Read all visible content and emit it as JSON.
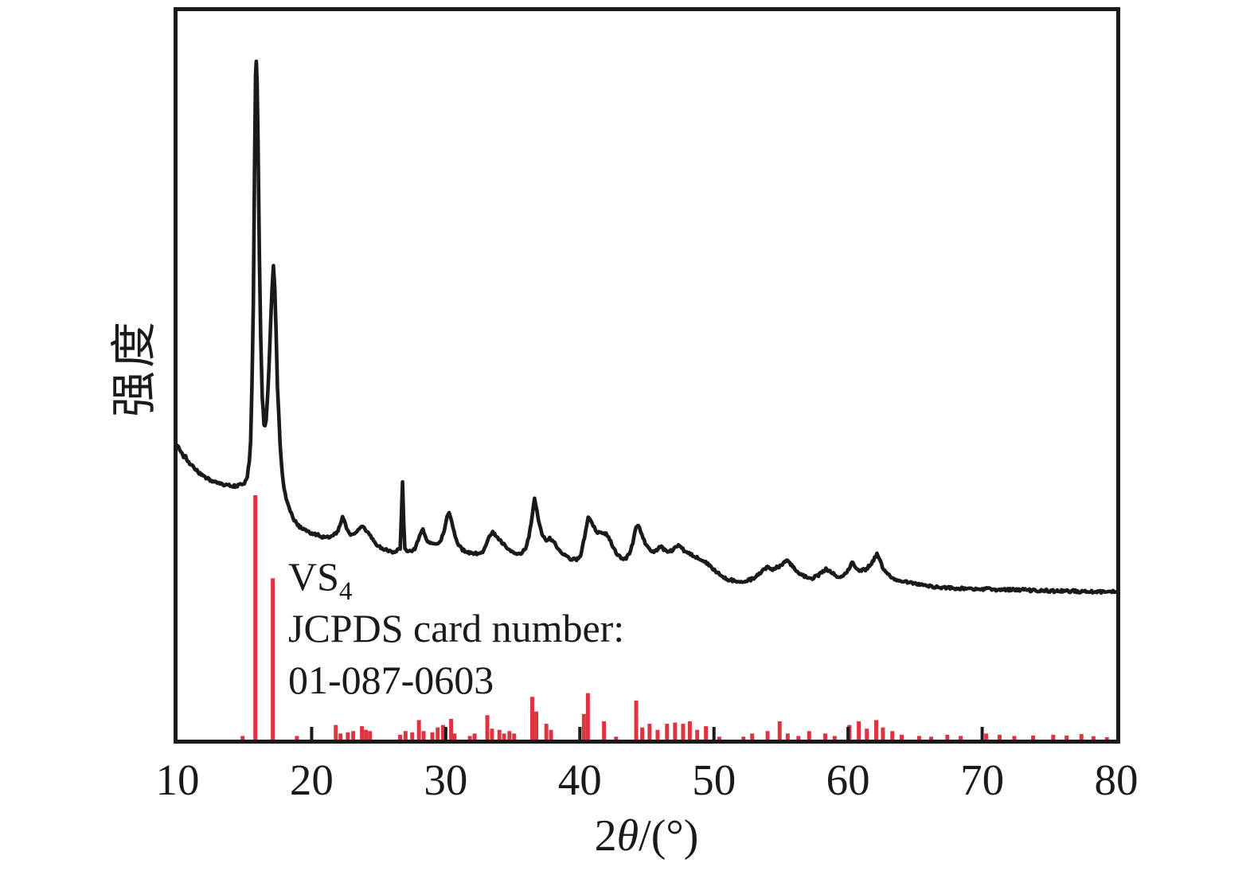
{
  "chart_data": {
    "type": "line",
    "description": "XRD pattern (experimental curve) with VS4 JCPDS reference stick pattern",
    "xlabel_parts": {
      "prefix": "2",
      "theta": "θ",
      "suffix": "/(°)"
    },
    "ylabel": "强度",
    "xlim": [
      10,
      80
    ],
    "x_ticks": [
      10,
      20,
      30,
      40,
      50,
      60,
      70,
      80
    ],
    "grid": false,
    "legend_position": "none",
    "colors": {
      "pattern": "#1a1a1a",
      "reference": "#dc3540",
      "axis": "#1a1a1a"
    },
    "annotation": {
      "formula_main": "VS",
      "formula_sub": "4",
      "line2": "JCPDS card number:",
      "line3": "01-087-0603"
    },
    "series": [
      {
        "name": "experimental-xrd-pattern",
        "draw": "line",
        "color": "#1a1a1a",
        "points": [
          [
            10.0,
            43.4
          ],
          [
            10.25,
            42.5
          ],
          [
            10.45,
            41.6
          ],
          [
            10.6,
            41.9
          ],
          [
            10.75,
            41.0
          ],
          [
            11.0,
            40.6
          ],
          [
            11.3,
            39.9
          ],
          [
            11.6,
            39.3
          ],
          [
            11.9,
            38.8
          ],
          [
            12.2,
            38.5
          ],
          [
            12.5,
            38.2
          ],
          [
            12.8,
            37.9
          ],
          [
            13.1,
            37.8
          ],
          [
            13.4,
            37.6
          ],
          [
            13.7,
            37.5
          ],
          [
            14.0,
            37.4
          ],
          [
            14.3,
            37.4
          ],
          [
            14.6,
            37.5
          ],
          [
            14.85,
            37.6
          ],
          [
            15.05,
            38.0
          ],
          [
            15.2,
            38.9
          ],
          [
            15.35,
            41.0
          ],
          [
            15.45,
            44.0
          ],
          [
            15.55,
            52.5
          ],
          [
            15.65,
            64.3
          ],
          [
            15.75,
            85.5
          ],
          [
            15.82,
            98.0
          ],
          [
            15.87,
            100.0
          ],
          [
            15.93,
            97.0
          ],
          [
            16.0,
            88.0
          ],
          [
            16.1,
            72.0
          ],
          [
            16.2,
            59.6
          ],
          [
            16.32,
            50.5
          ],
          [
            16.45,
            46.6
          ],
          [
            16.52,
            46.3
          ],
          [
            16.6,
            47.2
          ],
          [
            16.7,
            50.0
          ],
          [
            16.82,
            55.0
          ],
          [
            16.95,
            61.9
          ],
          [
            17.05,
            66.5
          ],
          [
            17.15,
            69.8
          ],
          [
            17.25,
            66.6
          ],
          [
            17.35,
            60.0
          ],
          [
            17.45,
            52.0
          ],
          [
            17.55,
            47.8
          ],
          [
            17.65,
            43.5
          ],
          [
            17.8,
            39.5
          ],
          [
            17.95,
            37.1
          ],
          [
            18.1,
            35.5
          ],
          [
            18.3,
            34.2
          ],
          [
            18.5,
            33.3
          ],
          [
            18.7,
            32.4
          ],
          [
            18.9,
            31.8
          ],
          [
            19.1,
            31.4
          ],
          [
            19.4,
            31.0
          ],
          [
            19.7,
            30.7
          ],
          [
            20.0,
            30.4
          ],
          [
            20.4,
            30.2
          ],
          [
            20.8,
            29.9
          ],
          [
            21.2,
            29.8
          ],
          [
            21.6,
            30.0
          ],
          [
            21.9,
            30.7
          ],
          [
            22.1,
            31.4
          ],
          [
            22.3,
            32.8
          ],
          [
            22.45,
            32.2
          ],
          [
            22.6,
            31.2
          ],
          [
            22.8,
            30.4
          ],
          [
            23.0,
            30.2
          ],
          [
            23.2,
            30.4
          ],
          [
            23.45,
            30.8
          ],
          [
            23.65,
            31.2
          ],
          [
            23.8,
            31.5
          ],
          [
            23.95,
            31.0
          ],
          [
            24.15,
            30.6
          ],
          [
            24.4,
            29.9
          ],
          [
            24.7,
            29.1
          ],
          [
            25.0,
            28.5
          ],
          [
            25.4,
            28.1
          ],
          [
            25.8,
            27.8
          ],
          [
            26.1,
            27.7
          ],
          [
            26.4,
            27.9
          ],
          [
            26.6,
            28.1
          ],
          [
            26.7,
            33.6
          ],
          [
            26.78,
            38.1
          ],
          [
            26.86,
            32.4
          ],
          [
            26.95,
            28.3
          ],
          [
            27.1,
            27.9
          ],
          [
            27.4,
            27.8
          ],
          [
            27.7,
            28.2
          ],
          [
            27.95,
            29.5
          ],
          [
            28.15,
            30.4
          ],
          [
            28.3,
            30.9
          ],
          [
            28.45,
            30.2
          ],
          [
            28.65,
            29.3
          ],
          [
            28.9,
            28.9
          ],
          [
            29.15,
            28.7
          ],
          [
            29.4,
            28.9
          ],
          [
            29.65,
            29.5
          ],
          [
            29.9,
            30.9
          ],
          [
            30.1,
            32.9
          ],
          [
            30.25,
            33.4
          ],
          [
            30.45,
            32.0
          ],
          [
            30.7,
            30.0
          ],
          [
            30.95,
            28.6
          ],
          [
            31.25,
            28.0
          ],
          [
            31.6,
            27.6
          ],
          [
            32.0,
            27.4
          ],
          [
            32.4,
            27.5
          ],
          [
            32.75,
            27.7
          ],
          [
            33.0,
            28.5
          ],
          [
            33.25,
            29.9
          ],
          [
            33.5,
            30.7
          ],
          [
            33.7,
            30.0
          ],
          [
            33.95,
            29.6
          ],
          [
            34.25,
            29.0
          ],
          [
            34.6,
            28.3
          ],
          [
            34.95,
            27.7
          ],
          [
            35.3,
            27.4
          ],
          [
            35.65,
            27.6
          ],
          [
            35.95,
            28.2
          ],
          [
            36.2,
            30.0
          ],
          [
            36.45,
            33.0
          ],
          [
            36.62,
            35.6
          ],
          [
            36.8,
            33.8
          ],
          [
            37.0,
            31.5
          ],
          [
            37.25,
            30.0
          ],
          [
            37.5,
            29.4
          ],
          [
            37.75,
            29.7
          ],
          [
            37.95,
            29.4
          ],
          [
            38.2,
            28.7
          ],
          [
            38.55,
            27.7
          ],
          [
            38.95,
            27.0
          ],
          [
            39.35,
            26.6
          ],
          [
            39.75,
            26.5
          ],
          [
            40.05,
            27.2
          ],
          [
            40.35,
            29.8
          ],
          [
            40.62,
            32.7
          ],
          [
            40.8,
            32.4
          ],
          [
            41.0,
            31.5
          ],
          [
            41.25,
            30.7
          ],
          [
            41.5,
            30.4
          ],
          [
            41.75,
            30.3
          ],
          [
            41.95,
            30.5
          ],
          [
            42.15,
            29.8
          ],
          [
            42.45,
            28.5
          ],
          [
            42.8,
            27.2
          ],
          [
            43.15,
            26.7
          ],
          [
            43.45,
            26.8
          ],
          [
            43.7,
            27.4
          ],
          [
            43.95,
            29.0
          ],
          [
            44.2,
            31.4
          ],
          [
            44.35,
            31.6
          ],
          [
            44.55,
            30.7
          ],
          [
            44.8,
            29.3
          ],
          [
            45.1,
            28.2
          ],
          [
            45.45,
            27.7
          ],
          [
            45.75,
            27.9
          ],
          [
            46.0,
            28.5
          ],
          [
            46.25,
            28.1
          ],
          [
            46.55,
            27.7
          ],
          [
            46.85,
            27.9
          ],
          [
            47.1,
            28.3
          ],
          [
            47.35,
            28.7
          ],
          [
            47.6,
            28.2
          ],
          [
            47.85,
            27.7
          ],
          [
            48.15,
            27.4
          ],
          [
            48.5,
            27.1
          ],
          [
            48.9,
            26.6
          ],
          [
            49.3,
            26.2
          ],
          [
            49.7,
            25.6
          ],
          [
            50.1,
            24.9
          ],
          [
            50.5,
            24.2
          ],
          [
            50.9,
            23.7
          ],
          [
            51.3,
            23.5
          ],
          [
            51.7,
            23.3
          ],
          [
            52.1,
            23.4
          ],
          [
            52.5,
            23.5
          ],
          [
            52.9,
            23.7
          ],
          [
            53.3,
            24.4
          ],
          [
            53.7,
            25.0
          ],
          [
            54.0,
            25.4
          ],
          [
            54.3,
            25.1
          ],
          [
            54.6,
            25.3
          ],
          [
            54.85,
            25.5
          ],
          [
            55.1,
            25.9
          ],
          [
            55.4,
            26.5
          ],
          [
            55.65,
            26.1
          ],
          [
            55.95,
            25.3
          ],
          [
            56.3,
            24.6
          ],
          [
            56.65,
            24.2
          ],
          [
            57.0,
            23.9
          ],
          [
            57.35,
            23.8
          ],
          [
            57.7,
            24.1
          ],
          [
            58.05,
            24.6
          ],
          [
            58.35,
            25.1
          ],
          [
            58.65,
            24.8
          ],
          [
            59.0,
            24.3
          ],
          [
            59.35,
            23.9
          ],
          [
            59.7,
            24.2
          ],
          [
            60.0,
            25.0
          ],
          [
            60.3,
            26.2
          ],
          [
            60.5,
            25.7
          ],
          [
            60.75,
            25.0
          ],
          [
            61.0,
            25.0
          ],
          [
            61.3,
            25.1
          ],
          [
            61.6,
            25.6
          ],
          [
            61.9,
            26.5
          ],
          [
            62.15,
            27.4
          ],
          [
            62.4,
            26.3
          ],
          [
            62.65,
            25.1
          ],
          [
            62.95,
            24.4
          ],
          [
            63.3,
            23.9
          ],
          [
            63.7,
            23.5
          ],
          [
            64.1,
            23.3
          ],
          [
            64.6,
            23.1
          ],
          [
            65.1,
            22.9
          ],
          [
            65.6,
            22.8
          ],
          [
            66.1,
            22.6
          ],
          [
            66.7,
            22.5
          ],
          [
            67.3,
            22.4
          ],
          [
            68.0,
            22.3
          ],
          [
            68.8,
            22.3
          ],
          [
            69.6,
            22.2
          ],
          [
            70.4,
            22.2
          ],
          [
            71.2,
            22.1
          ],
          [
            72.0,
            22.1
          ],
          [
            72.8,
            22.1
          ],
          [
            73.6,
            22.0
          ],
          [
            74.4,
            22.0
          ],
          [
            75.2,
            21.9
          ],
          [
            76.0,
            21.9
          ],
          [
            76.8,
            21.9
          ],
          [
            77.6,
            21.8
          ],
          [
            78.4,
            21.8
          ],
          [
            79.2,
            21.8
          ],
          [
            80.0,
            21.8
          ]
        ]
      },
      {
        "name": "vs4-jcpds-reference-sticks",
        "draw": "stick",
        "color": "#dc3540",
        "points": [
          [
            14.85,
            1.5
          ],
          [
            15.8,
            100
          ],
          [
            17.1,
            66
          ],
          [
            18.9,
            1.5
          ],
          [
            21.8,
            6
          ],
          [
            22.15,
            2.5
          ],
          [
            22.7,
            3
          ],
          [
            23.1,
            3.5
          ],
          [
            23.75,
            5.5
          ],
          [
            24.05,
            4
          ],
          [
            24.35,
            3.5
          ],
          [
            26.6,
            2
          ],
          [
            27.0,
            3.5
          ],
          [
            27.5,
            3
          ],
          [
            28.0,
            8
          ],
          [
            28.35,
            3.5
          ],
          [
            29.0,
            3
          ],
          [
            29.4,
            5
          ],
          [
            29.8,
            6
          ],
          [
            30.4,
            8.5
          ],
          [
            30.65,
            2.5
          ],
          [
            31.8,
            1.5
          ],
          [
            32.15,
            2.5
          ],
          [
            33.1,
            10
          ],
          [
            33.45,
            4.5
          ],
          [
            34.0,
            4
          ],
          [
            34.35,
            2.5
          ],
          [
            34.75,
            3.5
          ],
          [
            35.1,
            2.5
          ],
          [
            36.45,
            17.5
          ],
          [
            36.75,
            11.5
          ],
          [
            37.5,
            6.5
          ],
          [
            37.85,
            4
          ],
          [
            40.3,
            10.5
          ],
          [
            40.6,
            19
          ],
          [
            41.8,
            7.5
          ],
          [
            42.7,
            1.2
          ],
          [
            44.2,
            16
          ],
          [
            44.65,
            5
          ],
          [
            45.2,
            6.5
          ],
          [
            45.8,
            4
          ],
          [
            46.5,
            6.5
          ],
          [
            47.1,
            7
          ],
          [
            47.7,
            6.5
          ],
          [
            48.2,
            7.5
          ],
          [
            48.75,
            4
          ],
          [
            49.4,
            5.5
          ],
          [
            50.4,
            1.2
          ],
          [
            52.2,
            1.2
          ],
          [
            52.85,
            2.5
          ],
          [
            54.0,
            3.5
          ],
          [
            54.9,
            7.5
          ],
          [
            55.5,
            2.5
          ],
          [
            56.3,
            1.5
          ],
          [
            57.1,
            3.5
          ],
          [
            58.3,
            2.5
          ],
          [
            59.0,
            1.5
          ],
          [
            60.1,
            6
          ],
          [
            60.8,
            7.5
          ],
          [
            61.4,
            4.5
          ],
          [
            62.1,
            8
          ],
          [
            62.6,
            5
          ],
          [
            63.3,
            3.5
          ],
          [
            64.0,
            2
          ],
          [
            65.3,
            1.5
          ],
          [
            66.2,
            1.2
          ],
          [
            67.4,
            2
          ],
          [
            68.4,
            1.5
          ],
          [
            70.3,
            2.5
          ],
          [
            71.3,
            2
          ],
          [
            72.4,
            1.5
          ],
          [
            73.8,
            1.7
          ],
          [
            75.3,
            2
          ],
          [
            76.3,
            1.7
          ],
          [
            77.4,
            2.3
          ],
          [
            78.3,
            1.4
          ],
          [
            79.3,
            1
          ]
        ]
      }
    ]
  }
}
